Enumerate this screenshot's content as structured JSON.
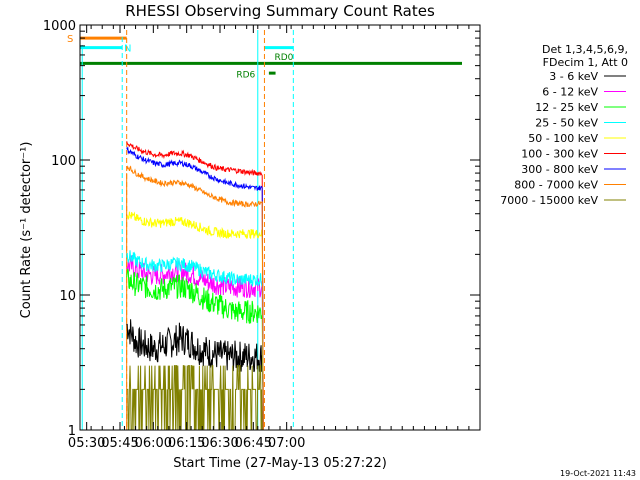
{
  "chart_data": {
    "type": "line",
    "title": "RHESSI Observing Summary Count Rates",
    "xlabel": "Start Time (27-May-13 05:27:22)",
    "ylabel": "Count Rate (s⁻¹ detector⁻¹)",
    "yscale": "log",
    "xlim_minutes": [
      0,
      180
    ],
    "ylim": [
      1,
      1000
    ],
    "x_ticks": [
      "05:30",
      "05:45",
      "06:00",
      "06:15",
      "06:30",
      "06:45",
      "07:00"
    ],
    "y_ticks": [
      "1",
      "10",
      "100",
      "1000"
    ],
    "grid": false,
    "legend_position": "right",
    "legend_header": [
      "Det 1,3,4,5,6,9,",
      "FDecim 1, Att 0"
    ],
    "series": [
      {
        "name": "3 - 6 keV",
        "color": "#000000",
        "start": "05:48",
        "end": "06:49",
        "values": [
          6.0,
          4.5,
          4.2,
          4.0,
          4.2,
          4.5,
          4.8,
          4.5,
          4.0,
          3.8,
          3.6,
          3.5,
          3.5,
          3.5,
          3.5,
          3.5
        ]
      },
      {
        "name": "6 - 12 keV",
        "color": "#ff00ff",
        "start": "05:48",
        "end": "06:49",
        "values": [
          17,
          15.5,
          14.5,
          14.0,
          14.2,
          15.0,
          15.0,
          14.5,
          13.5,
          12.5,
          12.0,
          11.5,
          11.5,
          11.5,
          11.5,
          11.5
        ]
      },
      {
        "name": "12 - 25 keV",
        "color": "#00ff00",
        "start": "05:48",
        "end": "06:49",
        "values": [
          13,
          12,
          11.5,
          11.0,
          11.0,
          11.5,
          11.5,
          11.0,
          10.0,
          9.0,
          8.5,
          8.0,
          7.5,
          7.5,
          7.5,
          7.5
        ]
      },
      {
        "name": "25 - 50 keV",
        "color": "#00ffff",
        "start": "05:48",
        "end": "06:49",
        "values": [
          20,
          18,
          17,
          16.5,
          16.5,
          17,
          17,
          16.5,
          15.5,
          14.5,
          14,
          13.5,
          13,
          13,
          13,
          13
        ]
      },
      {
        "name": "50 - 100 keV",
        "color": "#ffff00",
        "start": "05:48",
        "end": "06:49",
        "values": [
          40,
          37,
          35,
          34,
          34,
          35,
          35,
          34,
          32,
          30,
          29,
          28.5,
          28.5,
          28.5,
          28.5,
          28.5
        ]
      },
      {
        "name": "100 - 300 keV",
        "color": "#ff0000",
        "start": "05:48",
        "end": "06:49",
        "values": [
          135,
          122,
          115,
          110,
          108,
          112,
          112,
          108,
          100,
          93,
          87,
          85,
          84,
          82,
          80,
          80
        ]
      },
      {
        "name": "300 - 800 keV",
        "color": "#0000ff",
        "start": "05:48",
        "end": "06:49",
        "values": [
          120,
          108,
          100,
          95,
          92,
          94,
          95,
          91,
          84,
          77,
          72,
          68,
          66,
          64,
          62,
          62
        ]
      },
      {
        "name": "800 - 7000 keV",
        "color": "#ff8000",
        "start": "05:48",
        "end": "06:49",
        "values": [
          90,
          80,
          74,
          70,
          67,
          68,
          68,
          65,
          60,
          55,
          52,
          49,
          48,
          47,
          47,
          48
        ]
      },
      {
        "name": "7000 - 15000 keV",
        "color": "#808000",
        "start": "05:48",
        "end": "06:49",
        "values": [
          2,
          2,
          1.5,
          2,
          2,
          3,
          3,
          2,
          2,
          1.5,
          2,
          2,
          2,
          2,
          2,
          2
        ]
      }
    ],
    "annotations": [
      {
        "label": "S",
        "color": "#ff8000",
        "text_at": "05:27",
        "value": 800
      },
      {
        "label": "N",
        "color": "#00ffff",
        "text_at": "05:45",
        "value": 680
      },
      {
        "label": "RD6",
        "color": "#008000",
        "text_at": "06:45",
        "value": 520
      },
      {
        "label": "RD0",
        "color": "#008000",
        "text_at": "06:50",
        "value": 600
      }
    ],
    "timestamp": "19-Oct-2021 11:43"
  }
}
